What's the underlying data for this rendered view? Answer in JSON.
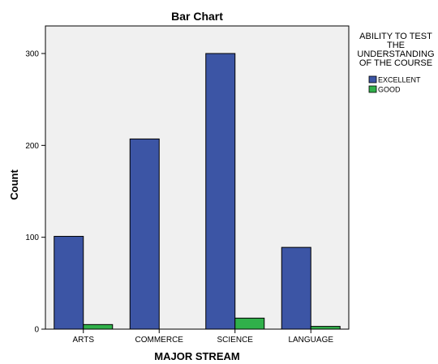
{
  "chart_data": {
    "type": "bar",
    "title": "Bar Chart",
    "xlabel": "MAJOR STREAM",
    "ylabel": "Count",
    "categories": [
      "ARTS",
      "COMMERCE",
      "SCIENCE",
      "LANGUAGE"
    ],
    "series": [
      {
        "name": "EXCELLENT",
        "values": [
          101,
          207,
          300,
          89
        ],
        "color": "#3c55a5"
      },
      {
        "name": "GOOD",
        "values": [
          5,
          0,
          12,
          3
        ],
        "color": "#30b04a"
      }
    ],
    "ylim": [
      0,
      330
    ],
    "yticks": [
      0,
      100,
      200,
      300
    ],
    "legend_title_lines": [
      "ABILITY TO TEST",
      "THE",
      "UNDERSTANDING",
      "OF THE COURSE"
    ],
    "legend_position": "right",
    "plot_background": "#f0f0f0",
    "grid": false
  }
}
